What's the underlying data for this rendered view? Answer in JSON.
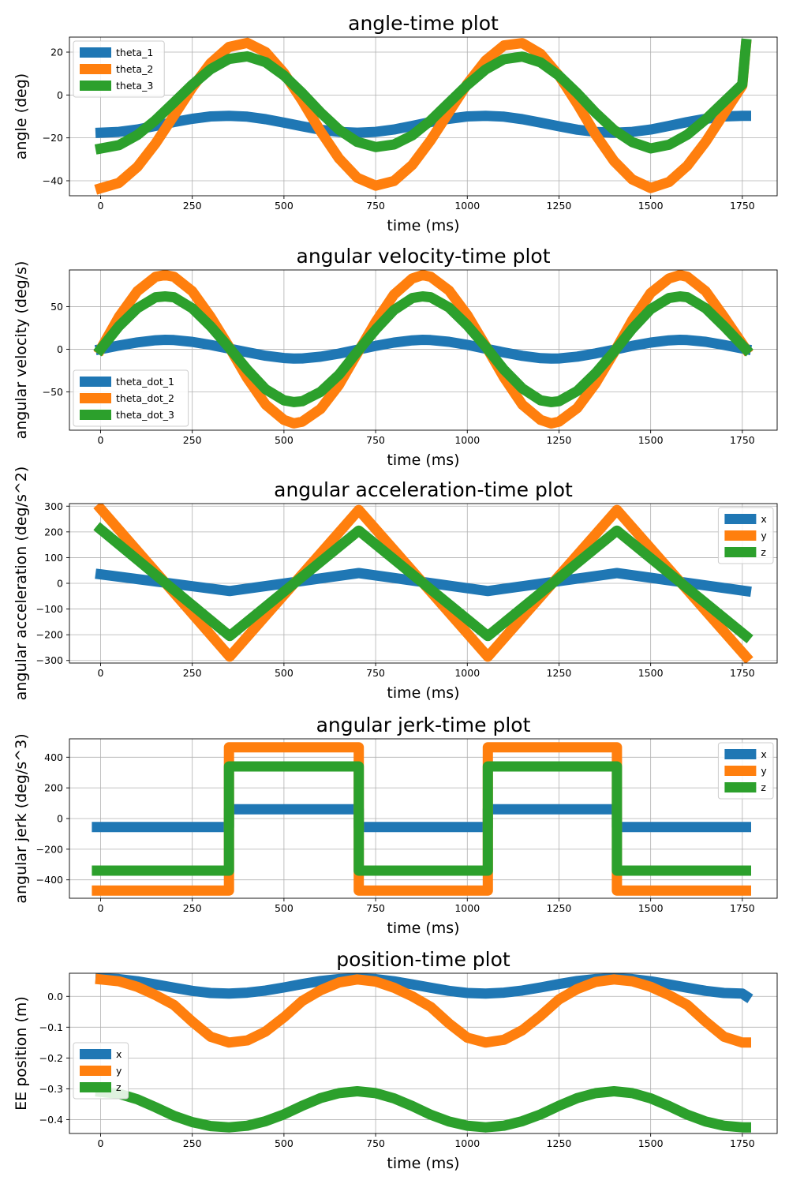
{
  "chart_data": [
    {
      "type": "line",
      "title": "angle-time plot",
      "xlabel": "time (ms)",
      "ylabel": "angle (deg)",
      "xlim": [
        -85,
        1845
      ],
      "ylim": [
        -47,
        27
      ],
      "xticks": [
        0,
        250,
        500,
        750,
        1000,
        1250,
        1500,
        1750
      ],
      "xtick_labels": [
        "0",
        "250",
        "500",
        "750",
        "1000",
        "1250",
        "1500",
        "1750"
      ],
      "yticks": [
        -40,
        -20,
        0,
        20
      ],
      "ytick_labels": [
        "−40",
        "−20",
        "0",
        "20"
      ],
      "grid": true,
      "legend_position": "upper-left",
      "x": [
        0,
        50,
        100,
        150,
        200,
        250,
        300,
        350,
        400,
        450,
        500,
        550,
        600,
        650,
        700,
        750,
        800,
        850,
        900,
        950,
        1000,
        1050,
        1100,
        1150,
        1200,
        1250,
        1300,
        1350,
        1400,
        1450,
        1500,
        1550,
        1600,
        1650,
        1700,
        1750,
        1760
      ],
      "series": [
        {
          "name": "theta_1",
          "color": "#1f77b4",
          "values": [
            -17.6,
            -17.2,
            -16.1,
            -14.4,
            -12.6,
            -11.1,
            -10.0,
            -9.7,
            -10.1,
            -11.3,
            -12.9,
            -14.6,
            -16.2,
            -17.2,
            -17.6,
            -17.2,
            -16.1,
            -14.4,
            -12.6,
            -11.1,
            -10.0,
            -9.7,
            -10.1,
            -11.3,
            -12.9,
            -14.6,
            -16.2,
            -17.2,
            -17.6,
            -17.2,
            -16.1,
            -14.4,
            -12.6,
            -11.1,
            -10.0,
            -9.7,
            -9.7
          ]
        },
        {
          "name": "theta_2",
          "color": "#ff7f0e",
          "values": [
            -43.5,
            -41.0,
            -33.6,
            -22.6,
            -9.6,
            3.5,
            14.8,
            22.4,
            24.3,
            20.0,
            10.3,
            -2.7,
            -17.0,
            -29.6,
            -38.6,
            -42.3,
            -40.1,
            -32.6,
            -21.2,
            -8.0,
            5.2,
            16.1,
            23.1,
            24.2,
            19.2,
            9.0,
            -4.2,
            -18.5,
            -30.8,
            -39.4,
            -43.4,
            -40.6,
            -33.0,
            -21.8,
            -8.7,
            4.4,
            23.5
          ]
        },
        {
          "name": "theta_3",
          "color": "#2ca02c",
          "values": [
            -25.0,
            -23.4,
            -18.7,
            -11.7,
            -3.5,
            4.8,
            12.0,
            16.8,
            18.0,
            15.3,
            9.1,
            0.9,
            -8.2,
            -16.2,
            -21.9,
            -24.3,
            -23.1,
            -18.8,
            -11.9,
            -3.6,
            4.7,
            11.9,
            16.7,
            17.9,
            15.2,
            9.0,
            0.8,
            -8.3,
            -16.3,
            -22.0,
            -24.9,
            -23.2,
            -18.5,
            -11.4,
            -3.2,
            5.0,
            23.8
          ]
        }
      ]
    },
    {
      "type": "line",
      "title": "angular velocity-time plot",
      "xlabel": "time (ms)",
      "ylabel": "angular velocity (deg/s)",
      "xlim": [
        -85,
        1845
      ],
      "ylim": [
        -95,
        93
      ],
      "xticks": [
        0,
        250,
        500,
        750,
        1000,
        1250,
        1500,
        1750
      ],
      "xtick_labels": [
        "0",
        "250",
        "500",
        "750",
        "1000",
        "1250",
        "1500",
        "1750"
      ],
      "yticks": [
        -50,
        0,
        50
      ],
      "ytick_labels": [
        "−50",
        "0",
        "50"
      ],
      "grid": true,
      "legend_position": "lower-left",
      "x": [
        0,
        50,
        100,
        150,
        176,
        200,
        250,
        300,
        350,
        400,
        450,
        500,
        527,
        550,
        600,
        650,
        700,
        750,
        800,
        850,
        878,
        900,
        950,
        1000,
        1050,
        1100,
        1150,
        1200,
        1229,
        1250,
        1300,
        1350,
        1400,
        1450,
        1500,
        1550,
        1580,
        1600,
        1650,
        1700,
        1760
      ],
      "series": [
        {
          "name": "theta_dot_1",
          "color": "#1f77b4",
          "values": [
            0,
            4.3,
            8.0,
            10.5,
            11.0,
            10.8,
            8.6,
            5.0,
            0.8,
            -3.6,
            -7.7,
            -10.4,
            -11.0,
            -10.8,
            -8.8,
            -5.2,
            -0.6,
            3.9,
            7.8,
            10.4,
            11.0,
            10.8,
            8.7,
            5.1,
            0.7,
            -3.8,
            -7.8,
            -10.5,
            -11.0,
            -10.8,
            -8.7,
            -5.0,
            -0.6,
            3.9,
            7.8,
            10.4,
            11.0,
            10.8,
            8.7,
            5.0,
            0
          ]
        },
        {
          "name": "theta_dot_2",
          "color": "#ff7f0e",
          "values": [
            0,
            38,
            68,
            85,
            87,
            85,
            68,
            38,
            3,
            -34,
            -65,
            -83,
            -87,
            -85,
            -70,
            -42,
            -5,
            32,
            64,
            83,
            87,
            85,
            69,
            40,
            4,
            -33,
            -65,
            -83,
            -87,
            -85,
            -69,
            -40,
            -4,
            34,
            66,
            83,
            87,
            85,
            68,
            38,
            0
          ]
        },
        {
          "name": "theta_dot_3",
          "color": "#2ca02c",
          "values": [
            0,
            27,
            48,
            61,
            62,
            61,
            48,
            27,
            2,
            -24,
            -47,
            -60,
            -62,
            -61,
            -50,
            -30,
            -3,
            23,
            46,
            60,
            62,
            61,
            49,
            28,
            3,
            -24,
            -46,
            -60,
            -62,
            -61,
            -49,
            -28,
            -3,
            24,
            47,
            60,
            62,
            61,
            48,
            27,
            0
          ]
        }
      ]
    },
    {
      "type": "line",
      "title": "angular acceleration-time plot",
      "xlabel": "time (ms)",
      "ylabel": "angular acceleration (deg/s^2)",
      "xlim": [
        -85,
        1845
      ],
      "ylim": [
        -310,
        310
      ],
      "xticks": [
        0,
        250,
        500,
        750,
        1000,
        1250,
        1500,
        1750
      ],
      "xtick_labels": [
        "0",
        "250",
        "500",
        "750",
        "1000",
        "1250",
        "1500",
        "1750"
      ],
      "yticks": [
        -300,
        -200,
        -100,
        0,
        100,
        200,
        300
      ],
      "ytick_labels": [
        "−300",
        "−200",
        "−100",
        "0",
        "100",
        "200",
        "300"
      ],
      "grid": true,
      "legend_position": "upper-right",
      "x": [
        0,
        352,
        704,
        1056,
        1408,
        1760
      ],
      "series": [
        {
          "name": "x",
          "color": "#1f77b4",
          "values": [
            35,
            -30,
            40,
            -30,
            40,
            -30
          ]
        },
        {
          "name": "y",
          "color": "#ff7f0e",
          "values": [
            290,
            -285,
            285,
            -285,
            285,
            -285
          ]
        },
        {
          "name": "z",
          "color": "#2ca02c",
          "values": [
            210,
            -205,
            205,
            -205,
            205,
            -205
          ]
        }
      ]
    },
    {
      "type": "line",
      "title": "angular jerk-time plot",
      "xlabel": "time (ms)",
      "ylabel": "angular jerk (deg/s^3)",
      "xlim": [
        -85,
        1845
      ],
      "ylim": [
        -520,
        520
      ],
      "xticks": [
        0,
        250,
        500,
        750,
        1000,
        1250,
        1500,
        1750
      ],
      "xtick_labels": [
        "0",
        "250",
        "500",
        "750",
        "1000",
        "1250",
        "1500",
        "1750"
      ],
      "yticks": [
        -400,
        -200,
        0,
        200,
        400
      ],
      "ytick_labels": [
        "−400",
        "−200",
        "0",
        "200",
        "400"
      ],
      "grid": true,
      "legend_position": "upper-right",
      "x": [
        -10,
        350,
        350,
        704,
        704,
        1056,
        1056,
        1408,
        1408,
        1760
      ],
      "series": [
        {
          "name": "x",
          "color": "#1f77b4",
          "values": [
            -55,
            -55,
            60,
            60,
            -55,
            -55,
            60,
            60,
            -55,
            -55
          ]
        },
        {
          "name": "y",
          "color": "#ff7f0e",
          "values": [
            -470,
            -470,
            465,
            465,
            -470,
            -470,
            465,
            465,
            -470,
            -470
          ]
        },
        {
          "name": "z",
          "color": "#2ca02c",
          "values": [
            -340,
            -340,
            340,
            340,
            -340,
            -340,
            340,
            340,
            -340,
            -340
          ]
        }
      ]
    },
    {
      "type": "line",
      "title": "position-time plot",
      "xlabel": "time (ms)",
      "ylabel": "EE position (m)",
      "xlim": [
        -85,
        1845
      ],
      "ylim": [
        -0.445,
        0.075
      ],
      "xticks": [
        0,
        250,
        500,
        750,
        1000,
        1250,
        1500,
        1750
      ],
      "xtick_labels": [
        "0",
        "250",
        "500",
        "750",
        "1000",
        "1250",
        "1500",
        "1750"
      ],
      "yticks": [
        -0.4,
        -0.3,
        -0.2,
        -0.1,
        0.0
      ],
      "ytick_labels": [
        "−0.4",
        "−0.3",
        "−0.2",
        "−0.1",
        "0.0"
      ],
      "grid": true,
      "legend_position": "center-left",
      "x": [
        0,
        50,
        100,
        150,
        200,
        250,
        300,
        350,
        400,
        450,
        500,
        550,
        600,
        650,
        700,
        750,
        800,
        850,
        900,
        950,
        1000,
        1050,
        1100,
        1150,
        1200,
        1250,
        1300,
        1350,
        1400,
        1450,
        1500,
        1550,
        1600,
        1650,
        1700,
        1750,
        1760
      ],
      "series": [
        {
          "name": "x",
          "color": "#1f77b4",
          "values": [
            0.058,
            0.056,
            0.049,
            0.039,
            0.028,
            0.018,
            0.011,
            0.009,
            0.012,
            0.019,
            0.029,
            0.04,
            0.05,
            0.056,
            0.058,
            0.056,
            0.049,
            0.039,
            0.028,
            0.018,
            0.011,
            0.009,
            0.012,
            0.019,
            0.029,
            0.04,
            0.05,
            0.056,
            0.058,
            0.056,
            0.049,
            0.039,
            0.028,
            0.018,
            0.011,
            0.009,
            0.001
          ]
        },
        {
          "name": "y",
          "color": "#ff7f0e",
          "values": [
            0.055,
            0.049,
            0.031,
            0.004,
            -0.028,
            -0.082,
            -0.131,
            -0.15,
            -0.143,
            -0.114,
            -0.068,
            -0.015,
            0.02,
            0.045,
            0.055,
            0.048,
            0.028,
            0.0,
            -0.034,
            -0.088,
            -0.134,
            -0.15,
            -0.141,
            -0.11,
            -0.063,
            -0.01,
            0.024,
            0.047,
            0.055,
            0.049,
            0.031,
            0.004,
            -0.028,
            -0.082,
            -0.131,
            -0.15,
            -0.15
          ]
        },
        {
          "name": "z",
          "color": "#2ca02c",
          "values": [
            -0.31,
            -0.316,
            -0.334,
            -0.36,
            -0.388,
            -0.408,
            -0.421,
            -0.425,
            -0.42,
            -0.405,
            -0.383,
            -0.355,
            -0.33,
            -0.314,
            -0.308,
            -0.314,
            -0.331,
            -0.356,
            -0.384,
            -0.406,
            -0.42,
            -0.425,
            -0.42,
            -0.405,
            -0.383,
            -0.355,
            -0.33,
            -0.314,
            -0.308,
            -0.314,
            -0.331,
            -0.356,
            -0.384,
            -0.406,
            -0.42,
            -0.425,
            -0.425
          ]
        }
      ]
    }
  ]
}
